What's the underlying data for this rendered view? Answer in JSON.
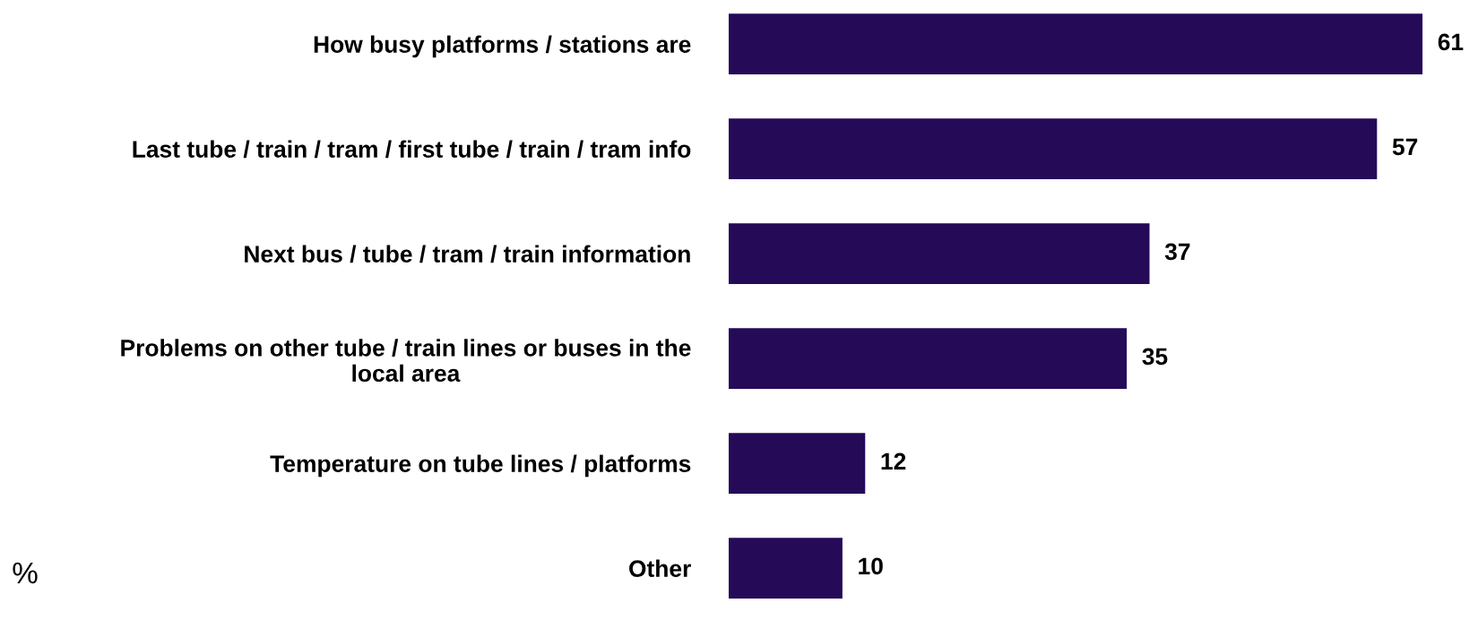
{
  "chart_data": {
    "type": "bar",
    "orientation": "horizontal",
    "categories": [
      "How busy platforms / stations are",
      "Last tube / train / tram / first tube / train / tram info",
      "Next bus / tube / tram / train information",
      "Problems on other tube / train lines or buses in the\nlocal area",
      "Temperature on tube lines / platforms",
      "Other"
    ],
    "values": [
      61,
      57,
      37,
      35,
      12,
      10
    ],
    "color": "#250a58",
    "data_labels": true,
    "annotations": [
      "%"
    ]
  }
}
